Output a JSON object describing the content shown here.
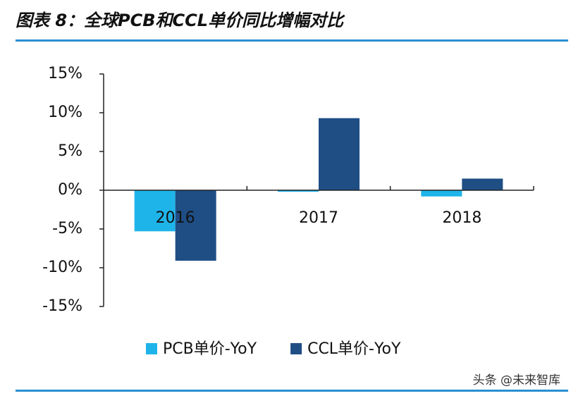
{
  "chart_data": {
    "type": "bar",
    "title": "图表 8：全球PCB和CCL单价同比增幅对比",
    "categories": [
      "2016",
      "2017",
      "2018"
    ],
    "series": [
      {
        "name": "PCB单价-YoY",
        "color": "#1eb4ea",
        "values": [
          -5.3,
          -0.2,
          -0.8
        ]
      },
      {
        "name": "CCL单价-YoY",
        "color": "#1f4e85",
        "values": [
          -9.1,
          9.3,
          1.5
        ]
      }
    ],
    "ylim": [
      -15,
      15
    ],
    "yticks": [
      {
        "value": -15,
        "label": "-15%"
      },
      {
        "value": -10,
        "label": "-10%"
      },
      {
        "value": -5,
        "label": "-5%"
      },
      {
        "value": 0,
        "label": "0%"
      },
      {
        "value": 5,
        "label": "5%"
      },
      {
        "value": 10,
        "label": "10%"
      },
      {
        "value": 15,
        "label": "15%"
      }
    ],
    "legend": "bottom",
    "watermark": "头条 @未来智库"
  }
}
